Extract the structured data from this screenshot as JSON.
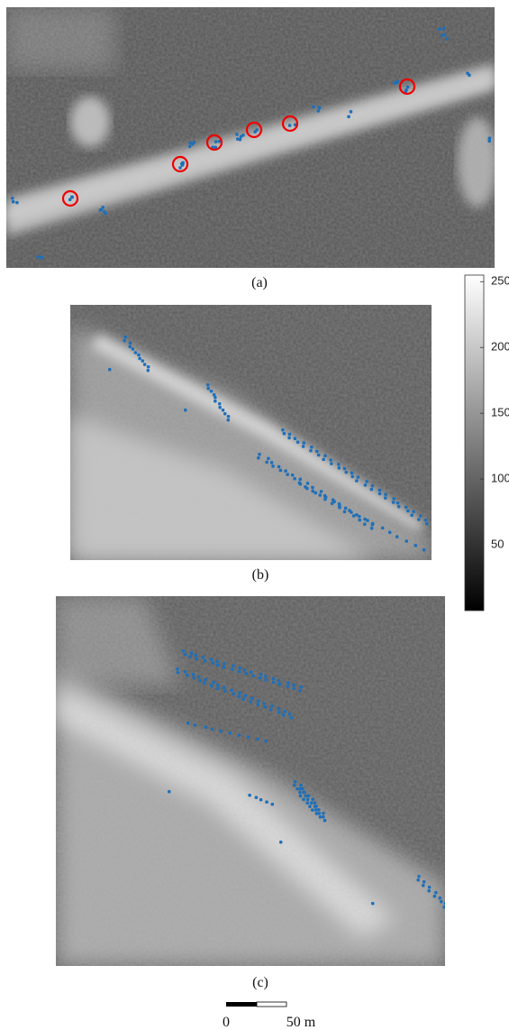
{
  "panels": [
    {
      "label": "(a)"
    },
    {
      "label": "(b)"
    },
    {
      "label": "(c)"
    }
  ],
  "colorbar": {
    "lim": [
      0,
      255
    ],
    "ticks": [
      50,
      100,
      150,
      200,
      250
    ]
  },
  "scale_bar": {
    "labels": [
      "0",
      "50 m"
    ]
  }
}
